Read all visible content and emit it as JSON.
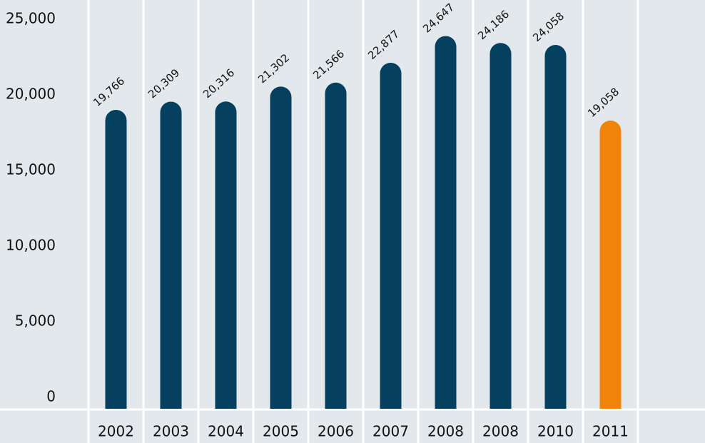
{
  "chart_data": {
    "type": "bar",
    "categories": [
      "2002",
      "2003",
      "2004",
      "2005",
      "2006",
      "2007",
      "2008",
      "2008",
      "2010",
      "2011"
    ],
    "values": [
      19766,
      20309,
      20316,
      21302,
      21566,
      22877,
      24647,
      24186,
      24058,
      19058
    ],
    "value_labels": [
      "19,766",
      "20,309",
      "20,316",
      "21,302",
      "21,566",
      "22,877",
      "24,647",
      "24,186",
      "24,058",
      "19,058"
    ],
    "colors": [
      "#05405f",
      "#05405f",
      "#05405f",
      "#05405f",
      "#05405f",
      "#05405f",
      "#05405f",
      "#05405f",
      "#05405f",
      "#f0840a"
    ],
    "ylim": [
      0,
      25000
    ],
    "yticks": [
      0,
      {
        "value": 5000,
        "label": "5,000"
      },
      {
        "value": 10000,
        "label": "10,000"
      },
      {
        "value": 15000,
        "label": "15,000"
      },
      {
        "value": 20000,
        "label": "20,000"
      },
      {
        "value": 25000,
        "label": "25,000"
      }
    ],
    "grid": false
  }
}
